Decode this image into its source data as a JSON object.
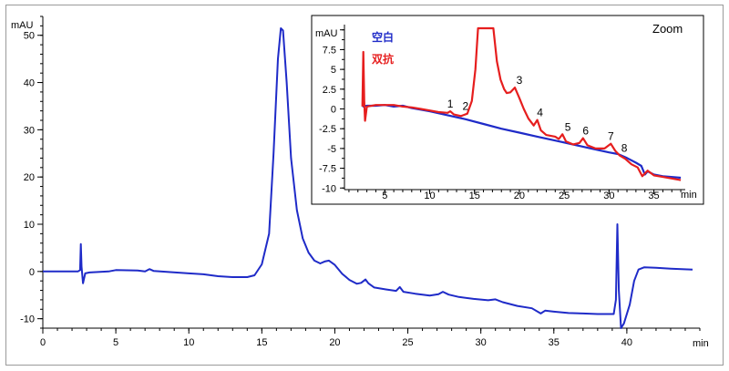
{
  "chart_data": [
    {
      "type": "line",
      "title": "",
      "ylabel": "mAU",
      "xlabel": "min",
      "xlim": [
        0,
        45
      ],
      "ylim": [
        -12,
        54
      ],
      "x_ticks": [
        0,
        5,
        10,
        15,
        20,
        25,
        30,
        35,
        40
      ],
      "y_ticks": [
        -10,
        0,
        10,
        20,
        30,
        40,
        50
      ],
      "grid": false,
      "series": [
        {
          "color": "#1f2bc8",
          "points": [
            [
              0,
              0
            ],
            [
              2.4,
              0
            ],
            [
              2.55,
              0.3
            ],
            [
              2.6,
              5.8
            ],
            [
              2.65,
              1
            ],
            [
              2.75,
              -2.5
            ],
            [
              2.9,
              -0.4
            ],
            [
              3.2,
              -0.2
            ],
            [
              4.5,
              0
            ],
            [
              5,
              0.3
            ],
            [
              6.5,
              0.2
            ],
            [
              7,
              0
            ],
            [
              7.3,
              0.5
            ],
            [
              7.6,
              0.1
            ],
            [
              8.5,
              -0.1
            ],
            [
              10,
              -0.4
            ],
            [
              11,
              -0.6
            ],
            [
              12,
              -1
            ],
            [
              13,
              -1.2
            ],
            [
              14,
              -1.2
            ],
            [
              14.5,
              -0.8
            ],
            [
              15,
              1.5
            ],
            [
              15.5,
              8
            ],
            [
              15.8,
              25
            ],
            [
              16.1,
              45
            ],
            [
              16.3,
              51.5
            ],
            [
              16.45,
              51
            ],
            [
              16.7,
              40
            ],
            [
              17,
              24
            ],
            [
              17.4,
              13
            ],
            [
              17.8,
              7
            ],
            [
              18.2,
              4
            ],
            [
              18.6,
              2.3
            ],
            [
              19,
              1.7
            ],
            [
              19.3,
              2.1
            ],
            [
              19.6,
              2.3
            ],
            [
              20,
              1.4
            ],
            [
              20.5,
              -0.5
            ],
            [
              21,
              -1.8
            ],
            [
              21.5,
              -2.6
            ],
            [
              21.8,
              -2.4
            ],
            [
              22.1,
              -1.7
            ],
            [
              22.3,
              -2.5
            ],
            [
              22.7,
              -3.4
            ],
            [
              23.5,
              -3.8
            ],
            [
              24.2,
              -4.1
            ],
            [
              24.45,
              -3.3
            ],
            [
              24.7,
              -4.3
            ],
            [
              25.5,
              -4.7
            ],
            [
              26.5,
              -5.1
            ],
            [
              27.1,
              -4.8
            ],
            [
              27.4,
              -4.3
            ],
            [
              27.8,
              -4.9
            ],
            [
              28.5,
              -5.4
            ],
            [
              29.5,
              -5.8
            ],
            [
              30.5,
              -6.1
            ],
            [
              31,
              -5.9
            ],
            [
              31.5,
              -6.5
            ],
            [
              32.5,
              -7.3
            ],
            [
              33.5,
              -7.8
            ],
            [
              34.1,
              -8.9
            ],
            [
              34.4,
              -8.3
            ],
            [
              35,
              -8.5
            ],
            [
              36,
              -8.8
            ],
            [
              37,
              -8.9
            ],
            [
              38,
              -9
            ],
            [
              39.1,
              -9
            ],
            [
              39.25,
              -6
            ],
            [
              39.35,
              10
            ],
            [
              39.45,
              -4
            ],
            [
              39.6,
              -12
            ],
            [
              39.8,
              -11
            ],
            [
              40.2,
              -7
            ],
            [
              40.5,
              -2
            ],
            [
              40.8,
              0.4
            ],
            [
              41.2,
              0.9
            ],
            [
              42,
              0.8
            ],
            [
              43,
              0.6
            ],
            [
              44.5,
              0.4
            ]
          ]
        }
      ]
    },
    {
      "type": "line",
      "title": "Zoom",
      "ylabel": "mAU",
      "xlabel": "min",
      "xlim": [
        0.5,
        38.5
      ],
      "ylim": [
        -10.2,
        10.2
      ],
      "x_ticks": [
        5,
        10,
        15,
        20,
        25,
        30,
        35
      ],
      "y_tick_labels": [
        "-10",
        "-7.5",
        "-5",
        "-2.5",
        "0",
        "2.5",
        "5",
        "7.5",
        "10"
      ],
      "y_ticks": [
        -10,
        -7.5,
        -5,
        -2.5,
        0,
        2.5,
        5,
        7.5,
        10
      ],
      "grid": false,
      "legend_position": "top-left",
      "series": [
        {
          "name": "空白",
          "color": "#1f2bc8",
          "points": [
            [
              2.5,
              0.3
            ],
            [
              3,
              0.4
            ],
            [
              4,
              0.4
            ],
            [
              5,
              0.5
            ],
            [
              6,
              0.3
            ],
            [
              7,
              0.4
            ],
            [
              8,
              0.1
            ],
            [
              10,
              -0.3
            ],
            [
              12,
              -0.8
            ],
            [
              14,
              -1.3
            ],
            [
              16,
              -1.9
            ],
            [
              18,
              -2.5
            ],
            [
              20,
              -3
            ],
            [
              22,
              -3.5
            ],
            [
              24,
              -4
            ],
            [
              26,
              -4.5
            ],
            [
              28,
              -5
            ],
            [
              30,
              -5.5
            ],
            [
              31,
              -5.7
            ],
            [
              32,
              -6.2
            ],
            [
              33,
              -6.8
            ],
            [
              33.6,
              -7.2
            ],
            [
              34,
              -8.3
            ],
            [
              34.3,
              -7.9
            ],
            [
              35,
              -8.3
            ],
            [
              36,
              -8.5
            ],
            [
              38,
              -8.7
            ]
          ]
        },
        {
          "name": "双抗",
          "color": "#e61e1e",
          "points": [
            [
              2.5,
              0.3
            ],
            [
              2.6,
              7.2
            ],
            [
              2.7,
              1
            ],
            [
              2.8,
              -1.5
            ],
            [
              3,
              0.3
            ],
            [
              4,
              0.5
            ],
            [
              5,
              0.5
            ],
            [
              6,
              0.5
            ],
            [
              7,
              0.3
            ],
            [
              8,
              0.2
            ],
            [
              9,
              0
            ],
            [
              10,
              -0.2
            ],
            [
              11,
              -0.4
            ],
            [
              12,
              -0.5
            ],
            [
              12.3,
              -0.3
            ],
            [
              12.7,
              -0.7
            ],
            [
              13.5,
              -0.9
            ],
            [
              14.2,
              -0.6
            ],
            [
              14.7,
              1
            ],
            [
              15.1,
              5
            ],
            [
              15.4,
              10.2
            ],
            [
              17.1,
              10.2
            ],
            [
              17.5,
              6
            ],
            [
              17.9,
              3.7
            ],
            [
              18.3,
              2.5
            ],
            [
              18.6,
              2
            ],
            [
              19,
              2.1
            ],
            [
              19.5,
              2.7
            ],
            [
              20,
              1.4
            ],
            [
              20.5,
              0
            ],
            [
              21,
              -1.2
            ],
            [
              21.6,
              -2.1
            ],
            [
              22,
              -1.4
            ],
            [
              22.4,
              -2.7
            ],
            [
              23,
              -3.3
            ],
            [
              24,
              -3.5
            ],
            [
              24.4,
              -3.8
            ],
            [
              24.8,
              -3.2
            ],
            [
              25.2,
              -4.1
            ],
            [
              26,
              -4.5
            ],
            [
              26.7,
              -4.3
            ],
            [
              27.1,
              -3.7
            ],
            [
              27.6,
              -4.6
            ],
            [
              28.5,
              -5
            ],
            [
              29.5,
              -5
            ],
            [
              30.2,
              -4.4
            ],
            [
              30.7,
              -5.3
            ],
            [
              31.2,
              -5.9
            ],
            [
              31.8,
              -6.3
            ],
            [
              32.5,
              -7
            ],
            [
              33.2,
              -7.4
            ],
            [
              33.7,
              -8.5
            ],
            [
              34.3,
              -7.8
            ],
            [
              35,
              -8.4
            ],
            [
              36,
              -8.6
            ],
            [
              38,
              -9
            ]
          ]
        }
      ],
      "annotations": [
        {
          "text": "1",
          "x": 12.3,
          "y": -0.3
        },
        {
          "text": "2",
          "x": 14.0,
          "y": -0.6
        },
        {
          "text": "3",
          "x": 20.0,
          "y": 2.7
        },
        {
          "text": "4",
          "x": 22.3,
          "y": -1.4
        },
        {
          "text": "5",
          "x": 25.4,
          "y": -3.2
        },
        {
          "text": "6",
          "x": 27.4,
          "y": -3.7
        },
        {
          "text": "7",
          "x": 30.2,
          "y": -4.4
        },
        {
          "text": "8",
          "x": 31.7,
          "y": -5.9
        }
      ]
    }
  ]
}
